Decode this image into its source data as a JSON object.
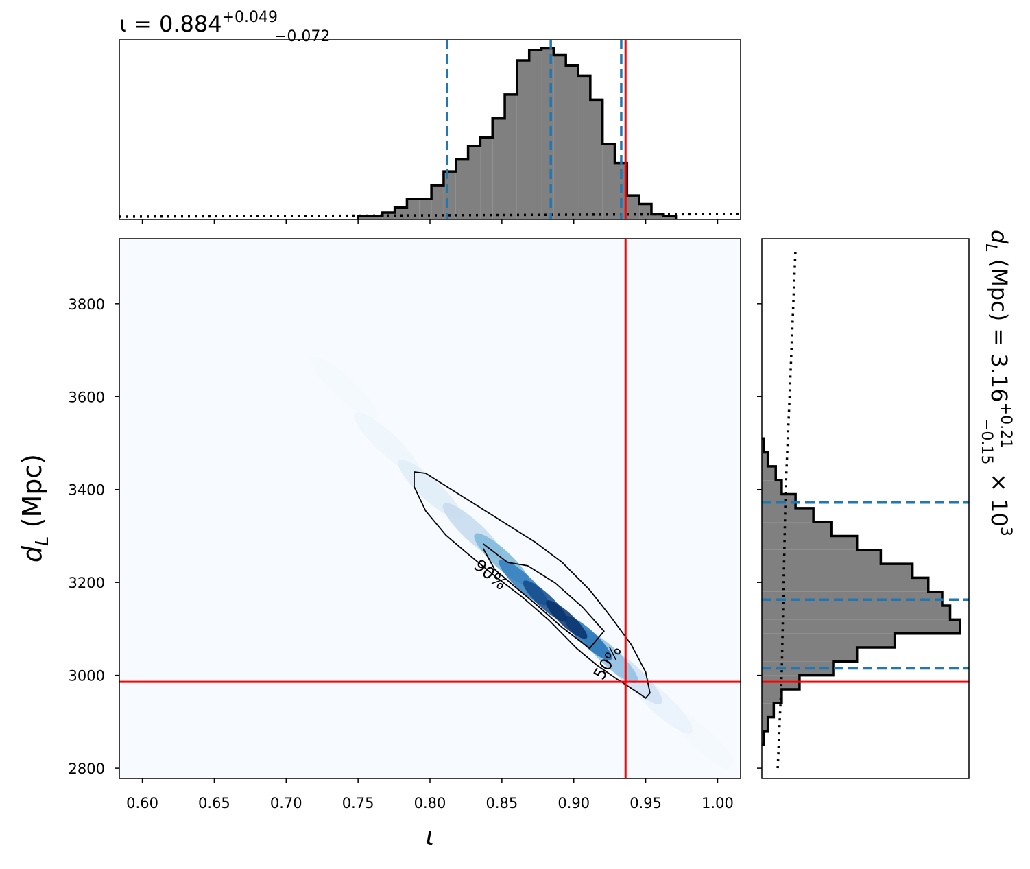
{
  "chart_data": {
    "type": "corner",
    "iota_title": {
      "main": "ι = 0.884",
      "plus": "+0.049",
      "minus": "−0.072"
    },
    "dl_title": {
      "d": "d",
      "sub": "L",
      "main": " (Mpc) = 3.16",
      "plus": "+0.21",
      "minus": "−0.15",
      "times": " × 10",
      "exp": "3"
    },
    "x_label": "ι",
    "y_label": {
      "d": "d",
      "sub": "L",
      "rest": " (Mpc)"
    },
    "xlim": [
      0.584,
      1.016
    ],
    "ylim": [
      2778,
      3940
    ],
    "xticks": [
      {
        "value": 0.6,
        "label": "0.60"
      },
      {
        "value": 0.65,
        "label": "0.65"
      },
      {
        "value": 0.7,
        "label": "0.70"
      },
      {
        "value": 0.75,
        "label": "0.75"
      },
      {
        "value": 0.8,
        "label": "0.80"
      },
      {
        "value": 0.85,
        "label": "0.85"
      },
      {
        "value": 0.9,
        "label": "0.90"
      },
      {
        "value": 0.95,
        "label": "0.95"
      },
      {
        "value": 1.0,
        "label": "1.00"
      }
    ],
    "yticks": [
      2800,
      3000,
      3200,
      3400,
      3600,
      3800
    ],
    "truth": {
      "iota": 0.936,
      "dl": 2986,
      "color": "#ff0000"
    },
    "quantile_color": "#1f77b4",
    "hist_color": "#808080",
    "iota_hist": {
      "bins": [
        0.75,
        0.7585,
        0.767,
        0.7755,
        0.784,
        0.7925,
        0.801,
        0.8095,
        0.818,
        0.8265,
        0.835,
        0.8435,
        0.852,
        0.8605,
        0.869,
        0.8775,
        0.886,
        0.8945,
        0.903,
        0.9115,
        0.92,
        0.9285,
        0.937,
        0.9455,
        0.954,
        0.9625,
        0.971
      ],
      "counts": [
        2,
        2,
        4,
        7,
        12,
        12,
        20,
        28,
        35,
        43,
        48,
        59,
        73,
        93,
        99,
        100,
        96,
        90,
        84,
        70,
        44,
        33,
        14,
        9,
        3,
        2
      ],
      "ylim": [
        0,
        105
      ],
      "quantiles": [
        0.812,
        0.884,
        0.933
      ],
      "prior": {
        "x": [
          0.584,
          0.7,
          0.8,
          0.9,
          1.016
        ],
        "density": [
          1.6,
          2,
          2.4,
          2.8,
          3.2
        ]
      }
    },
    "dl_hist": {
      "bins": [
        2850,
        2880,
        2910,
        2940,
        2970,
        3000,
        3030,
        3060,
        3090,
        3120,
        3150,
        3180,
        3210,
        3240,
        3270,
        3300,
        3330,
        3360,
        3390,
        3420,
        3450,
        3480,
        3510
      ],
      "counts": [
        1,
        3,
        6,
        10,
        19,
        36,
        48,
        67,
        100,
        95,
        91,
        84,
        76,
        60,
        48,
        35,
        26,
        17,
        10,
        7,
        3,
        1
      ],
      "xlim": [
        0,
        104.5
      ],
      "quantiles": [
        3015,
        3163,
        3372
      ],
      "prior": {
        "dl": [
          2800,
          3000,
          3200,
          3400,
          3600,
          3920
        ],
        "density": [
          8,
          10,
          11,
          12,
          14,
          17
        ]
      }
    },
    "density": {
      "colormap": [
        "#f7fbff",
        "#c6dbef",
        "#6baed6",
        "#2171b5",
        "#08306b"
      ],
      "x": [
        0.74,
        0.77,
        0.8,
        0.83,
        0.85,
        0.865,
        0.88,
        0.895,
        0.91,
        0.925,
        0.94,
        0.96,
        0.99
      ],
      "y": [
        3620,
        3500,
        3400,
        3310,
        3250,
        3200,
        3160,
        3120,
        3080,
        3040,
        3000,
        2940,
        2860
      ],
      "values": [
        0.02,
        0.05,
        0.12,
        0.25,
        0.45,
        0.7,
        0.9,
        1.0,
        0.75,
        0.4,
        0.2,
        0.07,
        0.02
      ]
    },
    "contours": [
      {
        "label": "90%",
        "x": [
          0.789,
          0.797,
          0.816,
          0.835,
          0.854,
          0.873,
          0.892,
          0.911,
          0.926,
          0.94,
          0.95,
          0.953,
          0.95,
          0.945,
          0.93,
          0.916,
          0.902,
          0.883,
          0.864,
          0.845,
          0.825,
          0.811,
          0.797,
          0.789,
          0.789
        ],
        "y": [
          3438,
          3435,
          3398,
          3361,
          3324,
          3287,
          3243,
          3184,
          3125,
          3066,
          3007,
          2962,
          2951,
          2962,
          2992,
          3022,
          3058,
          3118,
          3169,
          3214,
          3265,
          3302,
          3354,
          3406,
          3438
        ]
      },
      {
        "label": "50%",
        "x": [
          0.837,
          0.854,
          0.868,
          0.887,
          0.906,
          0.921,
          0.911,
          0.892,
          0.873,
          0.859,
          0.845,
          0.837
        ],
        "y": [
          3283,
          3243,
          3236,
          3199,
          3147,
          3095,
          3058,
          3103,
          3155,
          3191,
          3228,
          3273
        ]
      }
    ]
  }
}
